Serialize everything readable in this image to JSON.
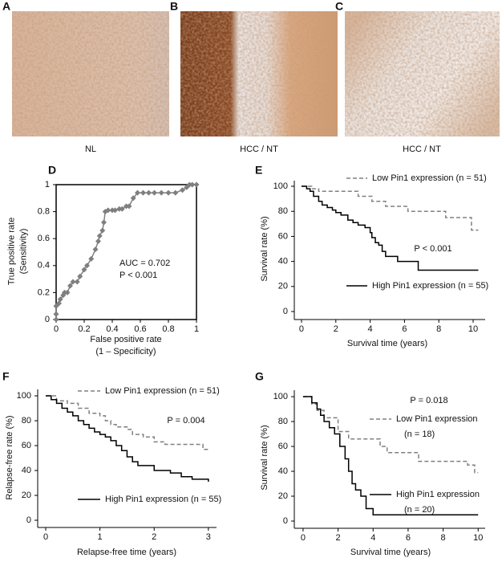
{
  "panels": [
    {
      "letter": "A",
      "caption": "NL"
    },
    {
      "letter": "B",
      "caption": "HCC / NT"
    },
    {
      "letter": "C",
      "caption": "HCC / NT"
    }
  ],
  "chart_data": [
    {
      "panel": "D",
      "type": "line",
      "marker": "diamond",
      "xlabel": [
        "False positive rate",
        "(1 – Specificity)"
      ],
      "ylabel": [
        "True positive rate",
        "(Sensitivity)"
      ],
      "annotations": [
        "AUC = 0.702",
        "P < 0.001"
      ],
      "x": [
        0,
        0,
        0,
        0.02,
        0.03,
        0.05,
        0.06,
        0.08,
        0.1,
        0.12,
        0.15,
        0.17,
        0.2,
        0.22,
        0.25,
        0.28,
        0.3,
        0.31,
        0.33,
        0.34,
        0.35,
        0.37,
        0.4,
        0.42,
        0.45,
        0.47,
        0.5,
        0.52,
        0.55,
        0.58,
        0.62,
        0.66,
        0.7,
        0.75,
        0.8,
        0.85,
        0.9,
        0.93,
        0.95,
        0.97,
        1
      ],
      "series": [
        {
          "color": "#7f7f7f",
          "values": [
            0,
            0.04,
            0.1,
            0.12,
            0.15,
            0.18,
            0.2,
            0.2,
            0.25,
            0.28,
            0.28,
            0.32,
            0.37,
            0.4,
            0.45,
            0.52,
            0.58,
            0.62,
            0.66,
            0.72,
            0.8,
            0.81,
            0.81,
            0.81,
            0.82,
            0.82,
            0.84,
            0.84,
            0.9,
            0.94,
            0.94,
            0.94,
            0.94,
            0.94,
            0.94,
            0.94,
            0.96,
            0.98,
            1,
            1,
            1
          ]
        }
      ],
      "xlim": [
        0,
        1
      ],
      "ylim": [
        0,
        1
      ],
      "xticks": [
        0,
        0.2,
        0.4,
        0.6,
        0.8,
        1
      ],
      "yticks": [
        0,
        0.2,
        0.4,
        0.6,
        0.8,
        1
      ]
    },
    {
      "panel": "E",
      "type": "step",
      "xlabel": "Survival time (years)",
      "ylabel": "Survival rate (%)",
      "annotations": [
        "P < 0.001"
      ],
      "series": [
        {
          "name": "Low Pin1 expression (n = 51)",
          "color": "#808080",
          "dash": true,
          "x": [
            0,
            0.6,
            1,
            3.3,
            4.1,
            4.9,
            6.2,
            8.4,
            9.9,
            10.3
          ],
          "values": [
            100,
            98,
            96,
            92,
            88,
            84,
            80,
            75,
            65,
            65
          ]
        },
        {
          "name": "High Pin1 expression (n = 55)",
          "color": "#000000",
          "dash": false,
          "x": [
            0,
            0.3,
            0.5,
            0.7,
            1,
            1.2,
            1.5,
            1.8,
            2,
            2.3,
            2.7,
            3,
            3.3,
            3.7,
            4,
            4.1,
            4.3,
            4.5,
            4.7,
            4.9,
            5.6,
            6.8,
            10.3
          ],
          "values": [
            100,
            98,
            96,
            92,
            88,
            85,
            83,
            81,
            79,
            77,
            73,
            71,
            69,
            67,
            63,
            59,
            55,
            53,
            48,
            44,
            40,
            33,
            33
          ]
        }
      ],
      "xlim": [
        -0.42,
        10.7
      ],
      "ylim": [
        -6.4,
        104.5
      ],
      "xticks": [
        0,
        2,
        4,
        6,
        8,
        10
      ],
      "yticks": [
        0,
        20,
        40,
        60,
        80,
        100
      ]
    },
    {
      "panel": "F",
      "type": "step",
      "xlabel": "Relapse-free time (years)",
      "ylabel": "Relapse-free rate (%)",
      "annotations": [
        "P = 0.004"
      ],
      "series": [
        {
          "name": "Low Pin1 expression (n = 51)",
          "color": "#808080",
          "dash": true,
          "x": [
            0,
            0.2,
            0.4,
            0.6,
            0.8,
            1,
            1.1,
            1.2,
            1.3,
            1.5,
            1.6,
            1.8,
            2,
            2.2,
            2.6,
            2.9,
            3
          ],
          "values": [
            100,
            96,
            94,
            90,
            86,
            84,
            80,
            77,
            75,
            73,
            69,
            67,
            63,
            61,
            61,
            57,
            57
          ]
        },
        {
          "name": "High Pin1 expression (n = 55)",
          "color": "#000000",
          "dash": false,
          "x": [
            0,
            0.1,
            0.2,
            0.3,
            0.4,
            0.5,
            0.6,
            0.7,
            0.8,
            0.9,
            1,
            1.1,
            1.2,
            1.3,
            1.4,
            1.5,
            1.6,
            1.7,
            2,
            2.3,
            2.5,
            2.7,
            3
          ],
          "values": [
            100,
            97,
            94,
            90,
            87,
            84,
            80,
            77,
            74,
            71,
            69,
            67,
            64,
            60,
            56,
            51,
            47,
            44,
            40,
            38,
            35,
            33,
            31
          ]
        }
      ],
      "xlim": [
        -0.148,
        3.15
      ],
      "ylim": [
        -5.8,
        105.2
      ],
      "xticks": [
        0,
        1,
        2,
        3
      ],
      "yticks": [
        0,
        20,
        40,
        60,
        80,
        100
      ]
    },
    {
      "panel": "G",
      "type": "step",
      "xlabel": "Survival time (years)",
      "ylabel": "Survival rate (%)",
      "annotations": [
        "P = 0.018"
      ],
      "series": [
        {
          "name": [
            "Low Pin1 expression",
            "(n = 18)"
          ],
          "color": "#808080",
          "dash": true,
          "x": [
            0,
            0.5,
            0.8,
            1.2,
            2,
            2.6,
            4.4,
            4.8,
            6.6,
            9.4,
            9.8,
            10
          ],
          "values": [
            100,
            94,
            89,
            83,
            72,
            66,
            60,
            55,
            48,
            45,
            39,
            39
          ]
        },
        {
          "name": [
            "High Pin1 expression",
            "(n = 20)"
          ],
          "color": "#000000",
          "dash": false,
          "x": [
            0,
            0.5,
            0.8,
            1,
            1.2,
            1.5,
            1.8,
            2.1,
            2.4,
            2.6,
            2.8,
            3,
            3.3,
            3.6,
            4,
            10
          ],
          "values": [
            100,
            95,
            90,
            85,
            80,
            75,
            70,
            60,
            50,
            40,
            30,
            25,
            20,
            10,
            5,
            5
          ]
        }
      ],
      "xlim": [
        -0.5,
        10.4
      ],
      "ylim": [
        -5.8,
        105.2
      ],
      "xticks": [
        0,
        2,
        4,
        6,
        8,
        10
      ],
      "yticks": [
        0,
        20,
        40,
        60,
        80,
        100
      ]
    }
  ]
}
